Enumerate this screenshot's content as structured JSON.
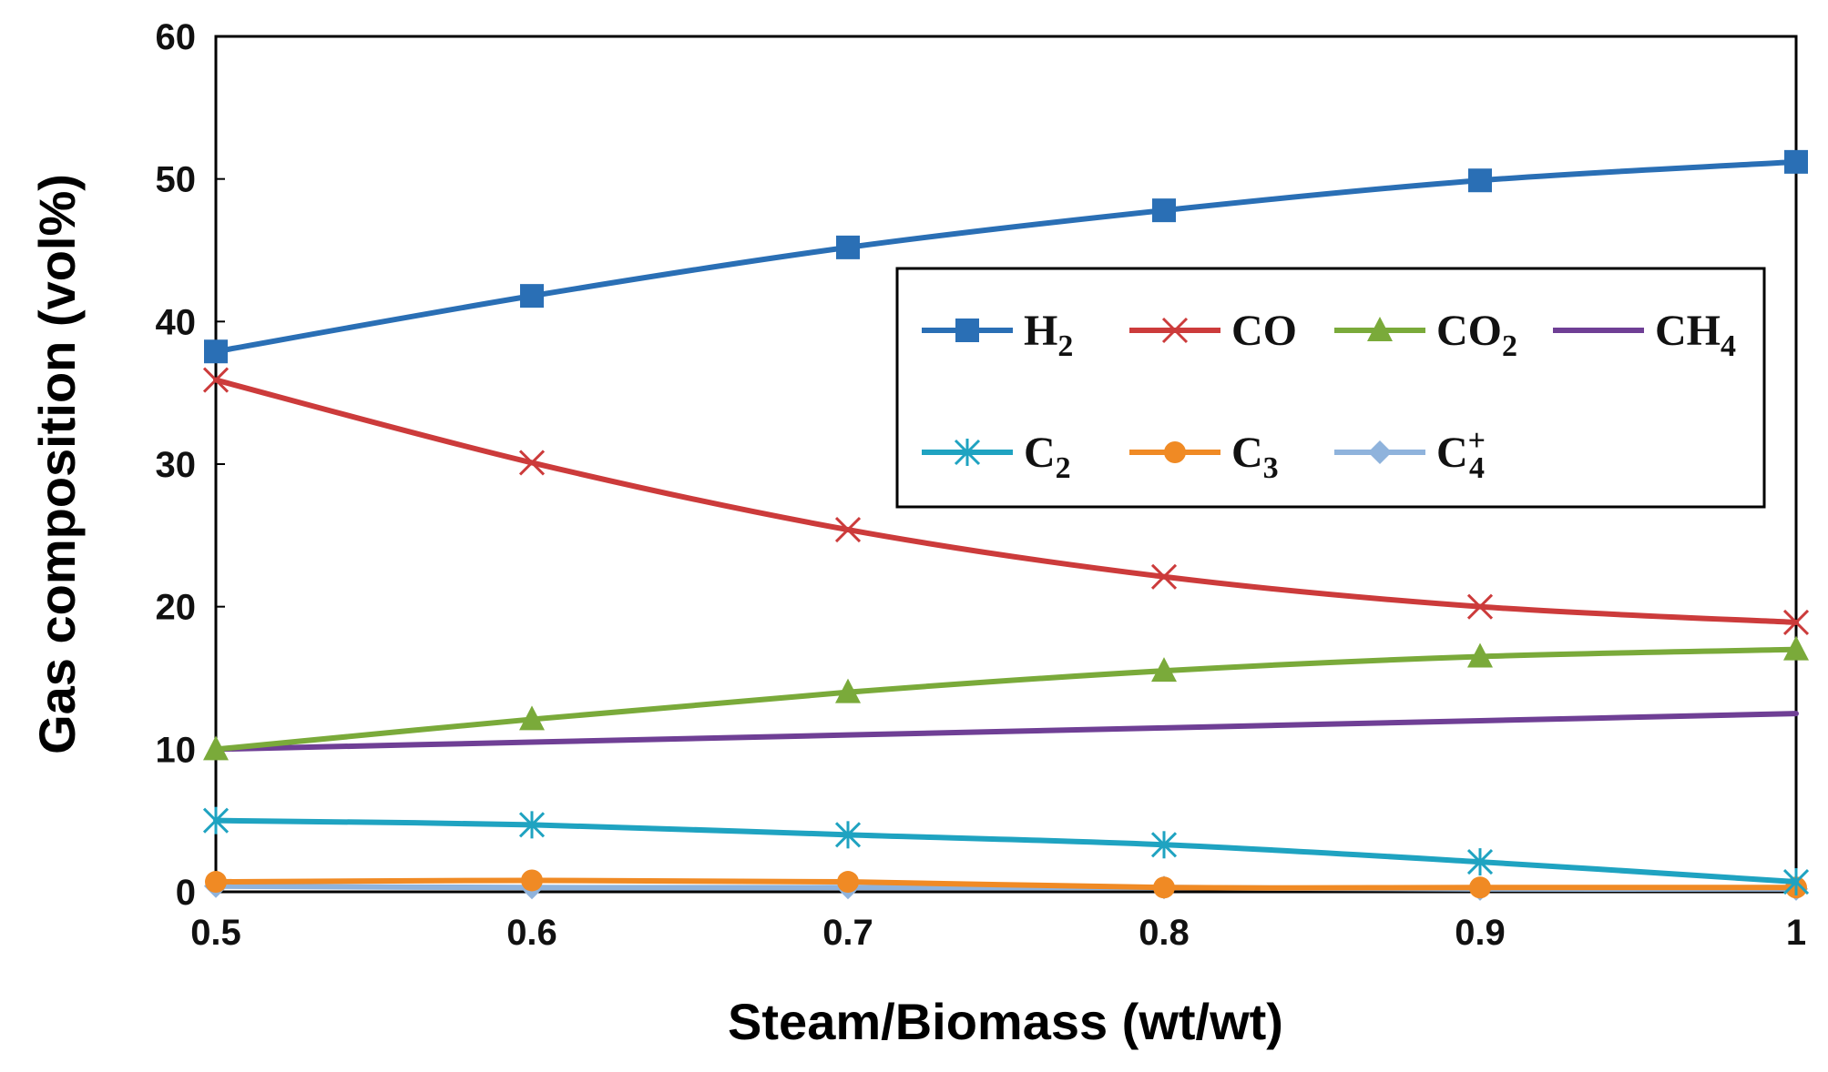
{
  "chart_data": {
    "type": "line",
    "title": "",
    "xlabel": "Steam/Biomass (wt/wt)",
    "ylabel": "Gas composition (vol%)",
    "x": [
      0.5,
      0.6,
      0.7,
      0.8,
      0.9,
      1.0
    ],
    "x_tick_labels": [
      "0.5",
      "0.6",
      "0.7",
      "0.8",
      "0.9",
      "1"
    ],
    "xlim": [
      0.5,
      1.0
    ],
    "y_ticks": [
      0,
      10,
      20,
      30,
      40,
      50,
      60
    ],
    "ylim": [
      0,
      60
    ],
    "grid": false,
    "legend_position": "upper-right inside plot",
    "series": [
      {
        "key": "h2",
        "name": "H2",
        "base": "H",
        "sub": "2",
        "sup": "",
        "color": "#2a6fb5",
        "marker": "square",
        "values": [
          37.9,
          41.8,
          45.2,
          47.8,
          49.9,
          51.2
        ]
      },
      {
        "key": "co",
        "name": "CO",
        "base": "CO",
        "sub": "",
        "sup": "",
        "color": "#cc3b3b",
        "marker": "x",
        "values": [
          35.9,
          30.1,
          25.4,
          22.1,
          20.0,
          18.9
        ]
      },
      {
        "key": "co2",
        "name": "CO2",
        "base": "CO",
        "sub": "2",
        "sup": "",
        "color": "#7aaa3a",
        "marker": "triangle",
        "values": [
          10.0,
          12.1,
          14.0,
          15.5,
          16.5,
          17.0
        ]
      },
      {
        "key": "ch4",
        "name": "CH4",
        "base": "CH",
        "sub": "4",
        "sup": "",
        "color": "#6f3f95",
        "marker": "none",
        "values": [
          10.0,
          10.5,
          11.0,
          11.5,
          12.0,
          12.5
        ]
      },
      {
        "key": "c2",
        "name": "C2",
        "base": "C",
        "sub": "2",
        "sup": "",
        "color": "#1fa3c1",
        "marker": "asterisk",
        "values": [
          5.0,
          4.7,
          4.0,
          3.3,
          2.1,
          0.7
        ]
      },
      {
        "key": "c3",
        "name": "C3",
        "base": "C",
        "sub": "3",
        "sup": "",
        "color": "#f08a24",
        "marker": "circle",
        "values": [
          0.7,
          0.8,
          0.7,
          0.3,
          0.3,
          0.3
        ]
      },
      {
        "key": "c4",
        "name": "C4+",
        "base": "C",
        "sub": "4",
        "sup": "+",
        "color": "#8fb3dc",
        "marker": "diamond",
        "values": [
          0.4,
          0.3,
          0.3,
          0.3,
          0.2,
          0.2
        ]
      }
    ]
  }
}
